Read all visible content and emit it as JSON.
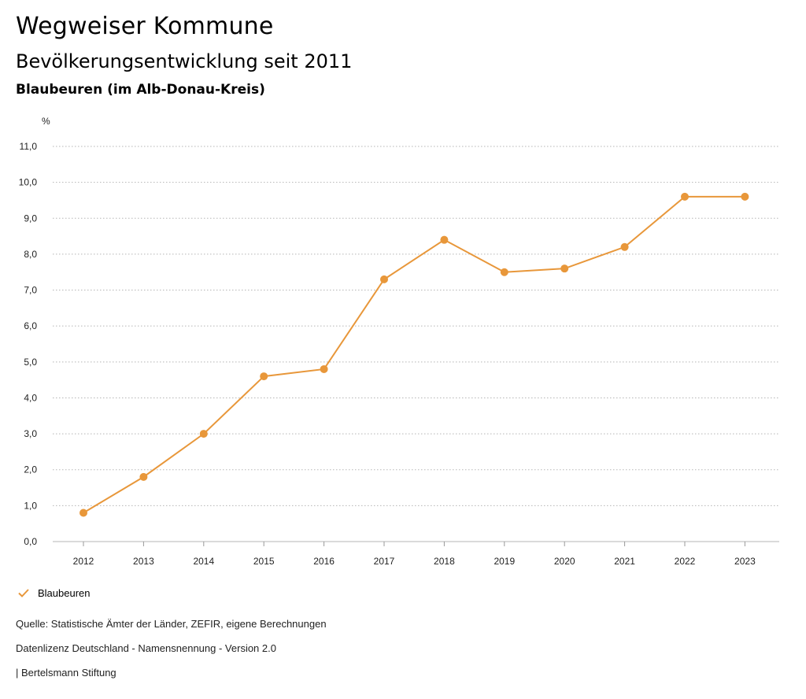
{
  "header": {
    "title": "Wegweiser Kommune",
    "subtitle": "Bevölkerungsentwicklung seit 2011",
    "region": "Blaubeuren (im Alb-Donau-Kreis)"
  },
  "colors": {
    "series": "#E8973A",
    "grid": "#b5b5b5",
    "axis": "#999999"
  },
  "chart_data": {
    "type": "line",
    "title": "Bevölkerungsentwicklung seit 2011",
    "subtitle": "Blaubeuren (im Alb-Donau-Kreis)",
    "ylabel": "%",
    "xlabel": "",
    "ylim": [
      0,
      11
    ],
    "yticks": [
      0,
      1,
      2,
      3,
      4,
      5,
      6,
      7,
      8,
      9,
      10,
      11
    ],
    "ytick_labels": [
      "0,0",
      "1,0",
      "2,0",
      "3,0",
      "4,0",
      "5,0",
      "6,0",
      "7,0",
      "8,0",
      "9,0",
      "10,0",
      "11,0"
    ],
    "categories": [
      "2012",
      "2013",
      "2014",
      "2015",
      "2016",
      "2017",
      "2018",
      "2019",
      "2020",
      "2021",
      "2022",
      "2023"
    ],
    "series": [
      {
        "name": "Blaubeuren",
        "values": [
          0.8,
          1.8,
          3.0,
          4.6,
          4.8,
          7.3,
          8.4,
          7.5,
          7.6,
          8.2,
          9.6,
          9.6
        ]
      }
    ],
    "grid": true,
    "legend": "bottom-left"
  },
  "legend": {
    "label": "Blaubeuren"
  },
  "footer": {
    "source": "Quelle: Statistische Ämter der Länder, ZEFIR, eigene Berechnungen",
    "license": "Datenlizenz Deutschland - Namensnennung - Version 2.0",
    "publisher": "| Bertelsmann Stiftung"
  }
}
